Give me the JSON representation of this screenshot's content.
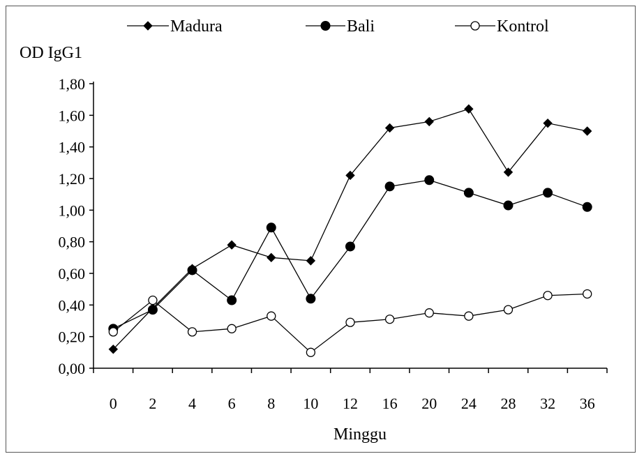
{
  "chart_data": {
    "type": "line",
    "ylabel": "OD IgG1",
    "xlabel": "Minggu",
    "categories": [
      "0",
      "2",
      "4",
      "6",
      "8",
      "10",
      "12",
      "16",
      "20",
      "24",
      "28",
      "32",
      "36"
    ],
    "y_ticks": [
      "0,00",
      "0,20",
      "0,40",
      "0,60",
      "0,80",
      "1,00",
      "1,20",
      "1,40",
      "1,60",
      "1,80"
    ],
    "ylim": [
      0,
      1.8
    ],
    "legend_placement": "top",
    "series": [
      {
        "name": "Madura",
        "marker": "diamond-filled",
        "values": [
          0.12,
          0.38,
          0.63,
          0.78,
          0.7,
          0.68,
          1.22,
          1.52,
          1.56,
          1.64,
          1.24,
          1.55,
          1.5
        ]
      },
      {
        "name": "Bali",
        "marker": "circle-filled",
        "values": [
          0.25,
          0.37,
          0.62,
          0.43,
          0.89,
          0.44,
          0.77,
          1.15,
          1.19,
          1.11,
          1.03,
          1.11,
          1.02
        ]
      },
      {
        "name": "Kontrol",
        "marker": "circle-open",
        "values": [
          0.23,
          0.43,
          0.23,
          0.25,
          0.33,
          0.1,
          0.29,
          0.31,
          0.35,
          0.33,
          0.37,
          0.46,
          0.47
        ]
      }
    ],
    "colors": {
      "line": "#000000",
      "axis": "#000000",
      "open_fill": "#ffffff"
    }
  }
}
